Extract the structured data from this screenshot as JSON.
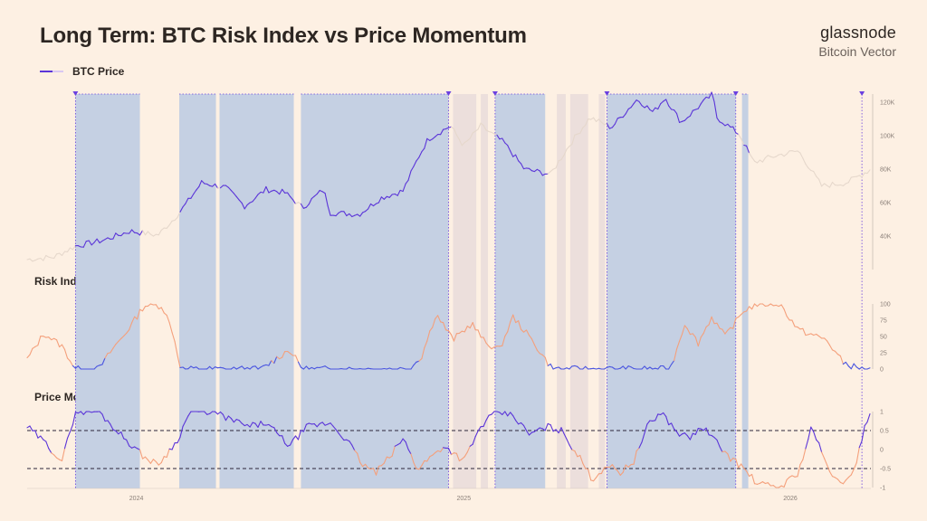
{
  "header": {
    "title": "Long Term: BTC Risk Index vs Price Momentum",
    "brand": "glassnode",
    "brand_sub": "Bitcoin Vector"
  },
  "legend": {
    "btc_price_label": "BTC Price"
  },
  "panels": {
    "risk_label": "Risk Index",
    "momentum_label": "Price Momentum"
  },
  "colors": {
    "background": "#fdf0e3",
    "regime_shade": "#c5d0e3",
    "neutral_shade": "#ecdfdc",
    "price_active": "#5b35d8",
    "price_inactive": "#e6d8cc",
    "risk_high": "#f4a07c",
    "risk_low": "#4a55e0",
    "momentum_high": "#5b35d8",
    "momentum_low": "#f4a07c",
    "marker": "#6a40e0"
  },
  "chart_data": [
    {
      "type": "line",
      "panel": "price",
      "series_name": "BTC Price",
      "x_range": [
        "2023-09-01",
        "2026-04-01"
      ],
      "ylim": [
        20000,
        125000
      ],
      "y_ticks": [
        "120K",
        "100K",
        "80K",
        "60K",
        "40K"
      ],
      "y_tick_values": [
        120000,
        100000,
        80000,
        60000,
        40000
      ],
      "x_ticks": [
        "2024",
        "2025",
        "2026"
      ],
      "x_tick_dates": [
        "2024-01-01",
        "2025-01-01",
        "2026-01-01"
      ],
      "points": [
        [
          "2023-09-01",
          26000
        ],
        [
          "2023-10-01",
          27500
        ],
        [
          "2023-10-25",
          34000
        ],
        [
          "2023-11-25",
          37500
        ],
        [
          "2023-12-25",
          43000
        ],
        [
          "2024-01-25",
          40500
        ],
        [
          "2024-02-15",
          52000
        ],
        [
          "2024-02-28",
          61000
        ],
        [
          "2024-03-14",
          72000
        ],
        [
          "2024-04-10",
          69000
        ],
        [
          "2024-05-01",
          58000
        ],
        [
          "2024-05-25",
          68000
        ],
        [
          "2024-06-15",
          66000
        ],
        [
          "2024-07-05",
          57000
        ],
        [
          "2024-07-28",
          68000
        ],
        [
          "2024-08-05",
          54000
        ],
        [
          "2024-09-06",
          53000
        ],
        [
          "2024-10-01",
          63000
        ],
        [
          "2024-10-25",
          67000
        ],
        [
          "2024-11-12",
          88000
        ],
        [
          "2024-11-22",
          98000
        ],
        [
          "2024-12-17",
          106000
        ],
        [
          "2025-01-01",
          94000
        ],
        [
          "2025-01-20",
          106000
        ],
        [
          "2025-02-15",
          96000
        ],
        [
          "2025-03-10",
          80000
        ],
        [
          "2025-04-08",
          77000
        ],
        [
          "2025-05-01",
          96000
        ],
        [
          "2025-05-22",
          111000
        ],
        [
          "2025-06-15",
          105000
        ],
        [
          "2025-07-14",
          122000
        ],
        [
          "2025-08-01",
          114000
        ],
        [
          "2025-08-14",
          123000
        ],
        [
          "2025-09-01",
          108000
        ],
        [
          "2025-10-06",
          125000
        ],
        [
          "2025-10-11",
          111000
        ],
        [
          "2025-11-05",
          101000
        ],
        [
          "2025-11-21",
          84000
        ],
        [
          "2025-12-15",
          88000
        ],
        [
          "2026-01-10",
          91000
        ],
        [
          "2026-02-05",
          70000
        ],
        [
          "2026-03-05",
          72000
        ],
        [
          "2026-04-01",
          80000
        ]
      ]
    },
    {
      "type": "line",
      "panel": "risk",
      "series_name": "Risk Index",
      "ylim": [
        0,
        100
      ],
      "y_ticks": [
        "100",
        "75",
        "50",
        "25",
        "0"
      ],
      "y_tick_values": [
        100,
        75,
        50,
        25,
        0
      ],
      "threshold_high_low": 12,
      "points": [
        [
          "2023-09-01",
          15
        ],
        [
          "2023-09-20",
          55
        ],
        [
          "2023-10-10",
          35
        ],
        [
          "2023-10-25",
          0
        ],
        [
          "2023-11-20",
          0
        ],
        [
          "2023-12-05",
          30
        ],
        [
          "2023-12-20",
          55
        ],
        [
          "2024-01-10",
          98
        ],
        [
          "2024-01-30",
          97
        ],
        [
          "2024-02-10",
          60
        ],
        [
          "2024-02-20",
          0
        ],
        [
          "2024-03-20",
          0
        ],
        [
          "2024-04-20",
          0
        ],
        [
          "2024-05-20",
          0
        ],
        [
          "2024-06-20",
          30
        ],
        [
          "2024-07-05",
          0
        ],
        [
          "2024-08-01",
          0
        ],
        [
          "2024-09-01",
          0
        ],
        [
          "2024-10-01",
          0
        ],
        [
          "2024-11-01",
          0
        ],
        [
          "2024-11-15",
          20
        ],
        [
          "2024-12-01",
          85
        ],
        [
          "2024-12-20",
          45
        ],
        [
          "2025-01-10",
          70
        ],
        [
          "2025-01-25",
          40
        ],
        [
          "2025-02-10",
          30
        ],
        [
          "2025-02-25",
          80
        ],
        [
          "2025-03-15",
          50
        ],
        [
          "2025-04-10",
          0
        ],
        [
          "2025-05-10",
          0
        ],
        [
          "2025-06-10",
          0
        ],
        [
          "2025-07-10",
          0
        ],
        [
          "2025-08-01",
          0
        ],
        [
          "2025-08-20",
          0
        ],
        [
          "2025-09-05",
          70
        ],
        [
          "2025-09-20",
          40
        ],
        [
          "2025-10-05",
          80
        ],
        [
          "2025-10-20",
          50
        ],
        [
          "2025-11-10",
          90
        ],
        [
          "2025-11-25",
          100
        ],
        [
          "2025-12-20",
          100
        ],
        [
          "2026-01-10",
          60
        ],
        [
          "2026-02-10",
          45
        ],
        [
          "2026-03-01",
          10
        ],
        [
          "2026-03-20",
          0
        ],
        [
          "2026-04-01",
          0
        ]
      ]
    },
    {
      "type": "line",
      "panel": "momentum",
      "series_name": "Price Momentum",
      "ylim": [
        -1,
        1
      ],
      "y_ticks": [
        "1",
        "0.5",
        "0",
        "-0.5",
        "-1"
      ],
      "y_tick_values": [
        1,
        0.5,
        0,
        -0.5,
        -1
      ],
      "reference_lines": [
        0.5,
        -0.5
      ],
      "points": [
        [
          "2023-09-01",
          0.6
        ],
        [
          "2023-09-20",
          0.2
        ],
        [
          "2023-10-10",
          -0.3
        ],
        [
          "2023-10-25",
          1.0
        ],
        [
          "2023-11-20",
          1.0
        ],
        [
          "2023-12-10",
          0.5
        ],
        [
          "2024-01-10",
          -0.2
        ],
        [
          "2024-01-25",
          -0.4
        ],
        [
          "2024-02-15",
          0.2
        ],
        [
          "2024-03-01",
          1.0
        ],
        [
          "2024-03-25",
          1.0
        ],
        [
          "2024-04-15",
          0.8
        ],
        [
          "2024-05-05",
          0.6
        ],
        [
          "2024-05-25",
          0.7
        ],
        [
          "2024-06-20",
          0.1
        ],
        [
          "2024-07-10",
          0.6
        ],
        [
          "2024-08-05",
          0.7
        ],
        [
          "2024-08-25",
          0.2
        ],
        [
          "2024-09-10",
          -0.4
        ],
        [
          "2024-09-25",
          -0.6
        ],
        [
          "2024-10-10",
          -0.2
        ],
        [
          "2024-10-25",
          0.3
        ],
        [
          "2024-11-10",
          -0.5
        ],
        [
          "2024-11-25",
          -0.2
        ],
        [
          "2024-12-10",
          0.1
        ],
        [
          "2025-01-01",
          -0.3
        ],
        [
          "2025-01-20",
          0.6
        ],
        [
          "2025-02-05",
          1.0
        ],
        [
          "2025-02-25",
          0.9
        ],
        [
          "2025-03-15",
          0.4
        ],
        [
          "2025-04-05",
          0.6
        ],
        [
          "2025-04-20",
          0.5
        ],
        [
          "2025-05-10",
          -0.2
        ],
        [
          "2025-05-25",
          -0.8
        ],
        [
          "2025-06-10",
          -0.4
        ],
        [
          "2025-06-25",
          -0.6
        ],
        [
          "2025-07-10",
          -0.3
        ],
        [
          "2025-07-25",
          0.6
        ],
        [
          "2025-08-10",
          1.0
        ],
        [
          "2025-08-25",
          0.5
        ],
        [
          "2025-09-10",
          0.3
        ],
        [
          "2025-09-25",
          0.6
        ],
        [
          "2025-10-10",
          0.2
        ],
        [
          "2025-10-25",
          -0.2
        ],
        [
          "2025-11-10",
          -0.5
        ],
        [
          "2025-11-25",
          -0.9
        ],
        [
          "2025-12-20",
          -1.0
        ],
        [
          "2026-01-10",
          -0.6
        ],
        [
          "2026-01-25",
          0.6
        ],
        [
          "2026-02-10",
          -0.4
        ],
        [
          "2026-02-28",
          -1.0
        ],
        [
          "2026-03-15",
          -0.4
        ],
        [
          "2026-03-25",
          0.6
        ],
        [
          "2026-04-01",
          1.0
        ]
      ]
    }
  ],
  "regimes": {
    "active_periods": [
      [
        "2023-10-25",
        "2024-01-05"
      ],
      [
        "2024-02-18",
        "2024-03-30"
      ],
      [
        "2024-04-03",
        "2024-06-25"
      ],
      [
        "2024-07-03",
        "2024-12-15"
      ],
      [
        "2025-02-05",
        "2025-04-02"
      ],
      [
        "2025-06-10",
        "2025-11-01"
      ],
      [
        "2025-11-08",
        "2025-11-15"
      ]
    ],
    "neutral_periods": [
      [
        "2024-12-20",
        "2025-01-15"
      ],
      [
        "2025-01-20",
        "2025-01-28"
      ],
      [
        "2025-04-15",
        "2025-04-25"
      ],
      [
        "2025-04-30",
        "2025-05-20"
      ],
      [
        "2025-06-01",
        "2025-06-08"
      ],
      [
        "2025-10-15",
        "2025-10-25"
      ]
    ],
    "marker_dates": [
      "2023-10-25",
      "2024-12-15",
      "2025-02-05",
      "2025-06-10",
      "2025-11-01",
      "2026-03-22"
    ]
  }
}
